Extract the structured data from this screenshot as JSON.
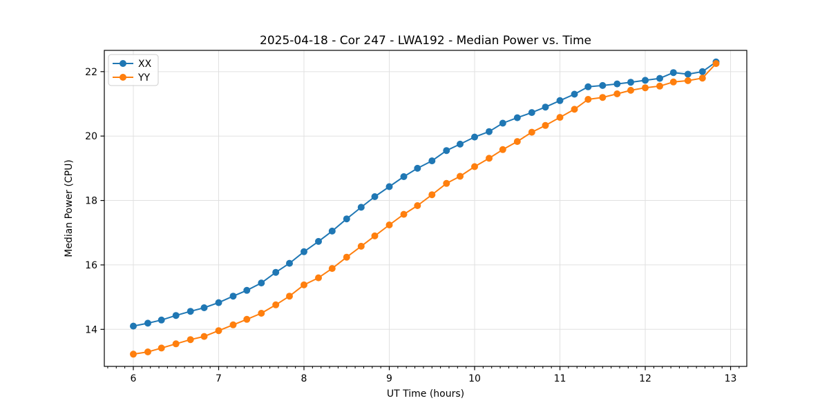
{
  "figure": {
    "background": "#ffffff",
    "frame_color": "#000000",
    "grid_color": "#e0e0e0"
  },
  "chart_data": {
    "type": "line",
    "title": "2025-04-18 - Cor 247 - LWA192 - Median Power vs. Time",
    "xlabel": "UT Time (hours)",
    "ylabel": "Median Power (CPU)",
    "xlim": [
      5.66,
      13.19
    ],
    "ylim": [
      12.85,
      22.66
    ],
    "xticks": [
      6,
      7,
      8,
      9,
      10,
      11,
      12,
      13
    ],
    "yticks": [
      14,
      16,
      18,
      20,
      22
    ],
    "x_minor_step": 0.1,
    "grid": true,
    "marker": "o",
    "legend": {
      "position": "upper left"
    },
    "x": [
      6.0,
      6.17,
      6.33,
      6.5,
      6.67,
      6.83,
      7.0,
      7.17,
      7.33,
      7.5,
      7.67,
      7.83,
      8.0,
      8.17,
      8.33,
      8.5,
      8.67,
      8.83,
      9.0,
      9.17,
      9.33,
      9.5,
      9.67,
      9.83,
      10.0,
      10.17,
      10.33,
      10.5,
      10.67,
      10.83,
      11.0,
      11.17,
      11.33,
      11.5,
      11.67,
      11.83,
      12.0,
      12.17,
      12.33,
      12.5,
      12.67,
      12.83
    ],
    "series": [
      {
        "name": "XX",
        "color": "#1f77b4",
        "values": [
          14.1,
          14.19,
          14.29,
          14.43,
          14.56,
          14.67,
          14.83,
          15.03,
          15.21,
          15.44,
          15.77,
          16.05,
          16.41,
          16.73,
          17.05,
          17.43,
          17.79,
          18.12,
          18.43,
          18.74,
          19.0,
          19.23,
          19.55,
          19.75,
          19.97,
          20.14,
          20.4,
          20.57,
          20.73,
          20.9,
          21.1,
          21.3,
          21.53,
          21.57,
          21.62,
          21.67,
          21.73,
          21.79,
          21.97,
          21.92,
          22.0,
          22.3
        ]
      },
      {
        "name": "YY",
        "color": "#ff7f0e",
        "values": [
          13.23,
          13.3,
          13.42,
          13.55,
          13.68,
          13.78,
          13.96,
          14.14,
          14.31,
          14.5,
          14.76,
          15.03,
          15.38,
          15.6,
          15.89,
          16.24,
          16.58,
          16.9,
          17.24,
          17.57,
          17.84,
          18.18,
          18.53,
          18.75,
          19.05,
          19.31,
          19.58,
          19.83,
          20.12,
          20.33,
          20.58,
          20.83,
          21.14,
          21.2,
          21.31,
          21.42,
          21.5,
          21.55,
          21.68,
          21.72,
          21.8,
          22.25
        ]
      }
    ]
  }
}
